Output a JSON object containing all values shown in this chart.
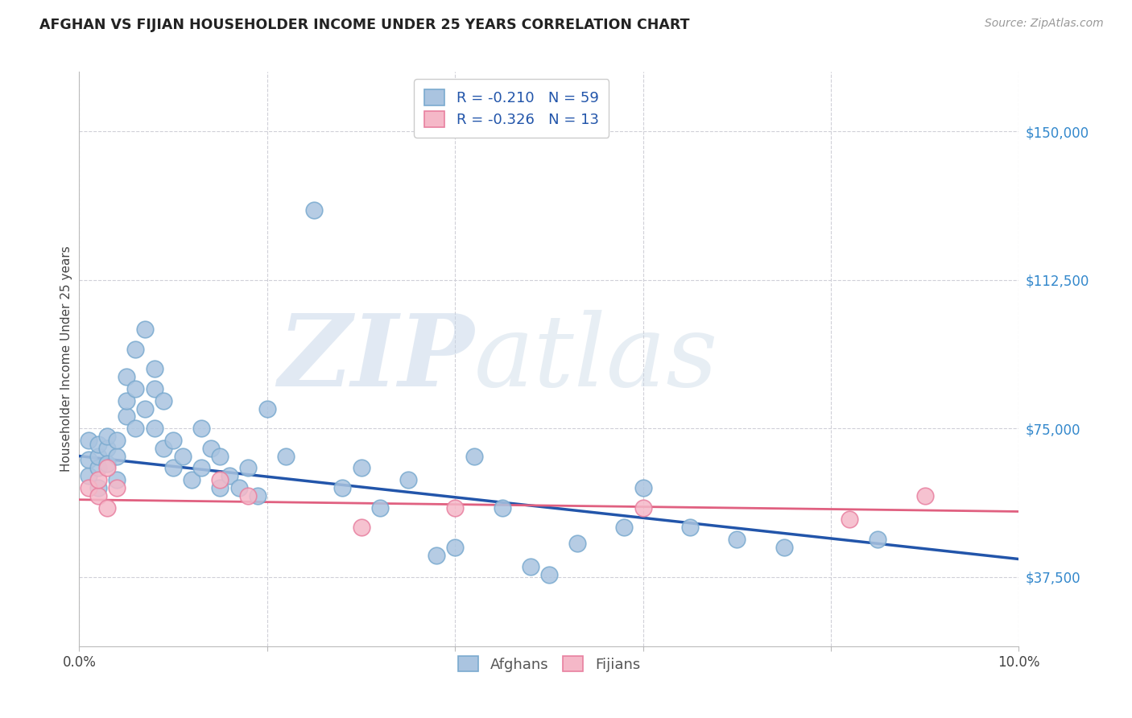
{
  "title": "AFGHAN VS FIJIAN HOUSEHOLDER INCOME UNDER 25 YEARS CORRELATION CHART",
  "source": "Source: ZipAtlas.com",
  "ylabel": "Householder Income Under 25 years",
  "xlim": [
    0.0,
    0.1
  ],
  "ylim": [
    20000,
    165000
  ],
  "yticks": [
    37500,
    75000,
    112500,
    150000
  ],
  "ytick_labels": [
    "$37,500",
    "$75,000",
    "$112,500",
    "$150,000"
  ],
  "xtick_positions": [
    0.0,
    0.02,
    0.04,
    0.06,
    0.08,
    0.1
  ],
  "xtick_labels": [
    "0.0%",
    "",
    "",
    "",
    "",
    "10.0%"
  ],
  "afghan_R": -0.21,
  "afghan_N": 59,
  "fijian_R": -0.326,
  "fijian_N": 13,
  "afghan_color": "#aac4e0",
  "afghan_edge": "#7aaacf",
  "fijian_color": "#f5b8c8",
  "fijian_edge": "#e880a0",
  "trend_afghan_color": "#2255aa",
  "trend_fijian_color": "#e06080",
  "watermark_zip": "ZIP",
  "watermark_atlas": "atlas",
  "watermark_color_zip": "#c5d5e8",
  "watermark_color_atlas": "#c5d5e5",
  "background_color": "#ffffff",
  "grid_color": "#d0d0d8",
  "title_color": "#222222",
  "source_color": "#999999",
  "legend_text_color": "#2255aa",
  "legend_label_color": "#222222",
  "ytick_color": "#3388cc",
  "xtick_color": "#444444",
  "ylabel_color": "#444444",
  "afghan_x": [
    0.001,
    0.001,
    0.001,
    0.002,
    0.002,
    0.002,
    0.002,
    0.003,
    0.003,
    0.003,
    0.004,
    0.004,
    0.004,
    0.005,
    0.005,
    0.005,
    0.006,
    0.006,
    0.006,
    0.007,
    0.007,
    0.008,
    0.008,
    0.008,
    0.009,
    0.009,
    0.01,
    0.01,
    0.011,
    0.012,
    0.013,
    0.013,
    0.014,
    0.015,
    0.015,
    0.016,
    0.017,
    0.018,
    0.019,
    0.02,
    0.022,
    0.025,
    0.028,
    0.03,
    0.032,
    0.035,
    0.038,
    0.04,
    0.042,
    0.045,
    0.048,
    0.05,
    0.053,
    0.058,
    0.06,
    0.065,
    0.07,
    0.075,
    0.085
  ],
  "afghan_y": [
    63000,
    67000,
    72000,
    65000,
    68000,
    71000,
    60000,
    70000,
    66000,
    73000,
    68000,
    72000,
    62000,
    78000,
    82000,
    88000,
    95000,
    85000,
    75000,
    100000,
    80000,
    90000,
    85000,
    75000,
    82000,
    70000,
    72000,
    65000,
    68000,
    62000,
    75000,
    65000,
    70000,
    68000,
    60000,
    63000,
    60000,
    65000,
    58000,
    80000,
    68000,
    130000,
    60000,
    65000,
    55000,
    62000,
    43000,
    45000,
    68000,
    55000,
    40000,
    38000,
    46000,
    50000,
    60000,
    50000,
    47000,
    45000,
    47000
  ],
  "fijian_x": [
    0.001,
    0.002,
    0.002,
    0.003,
    0.003,
    0.004,
    0.015,
    0.018,
    0.03,
    0.04,
    0.06,
    0.082,
    0.09
  ],
  "fijian_y": [
    60000,
    58000,
    62000,
    55000,
    65000,
    60000,
    62000,
    58000,
    50000,
    55000,
    55000,
    52000,
    58000
  ]
}
